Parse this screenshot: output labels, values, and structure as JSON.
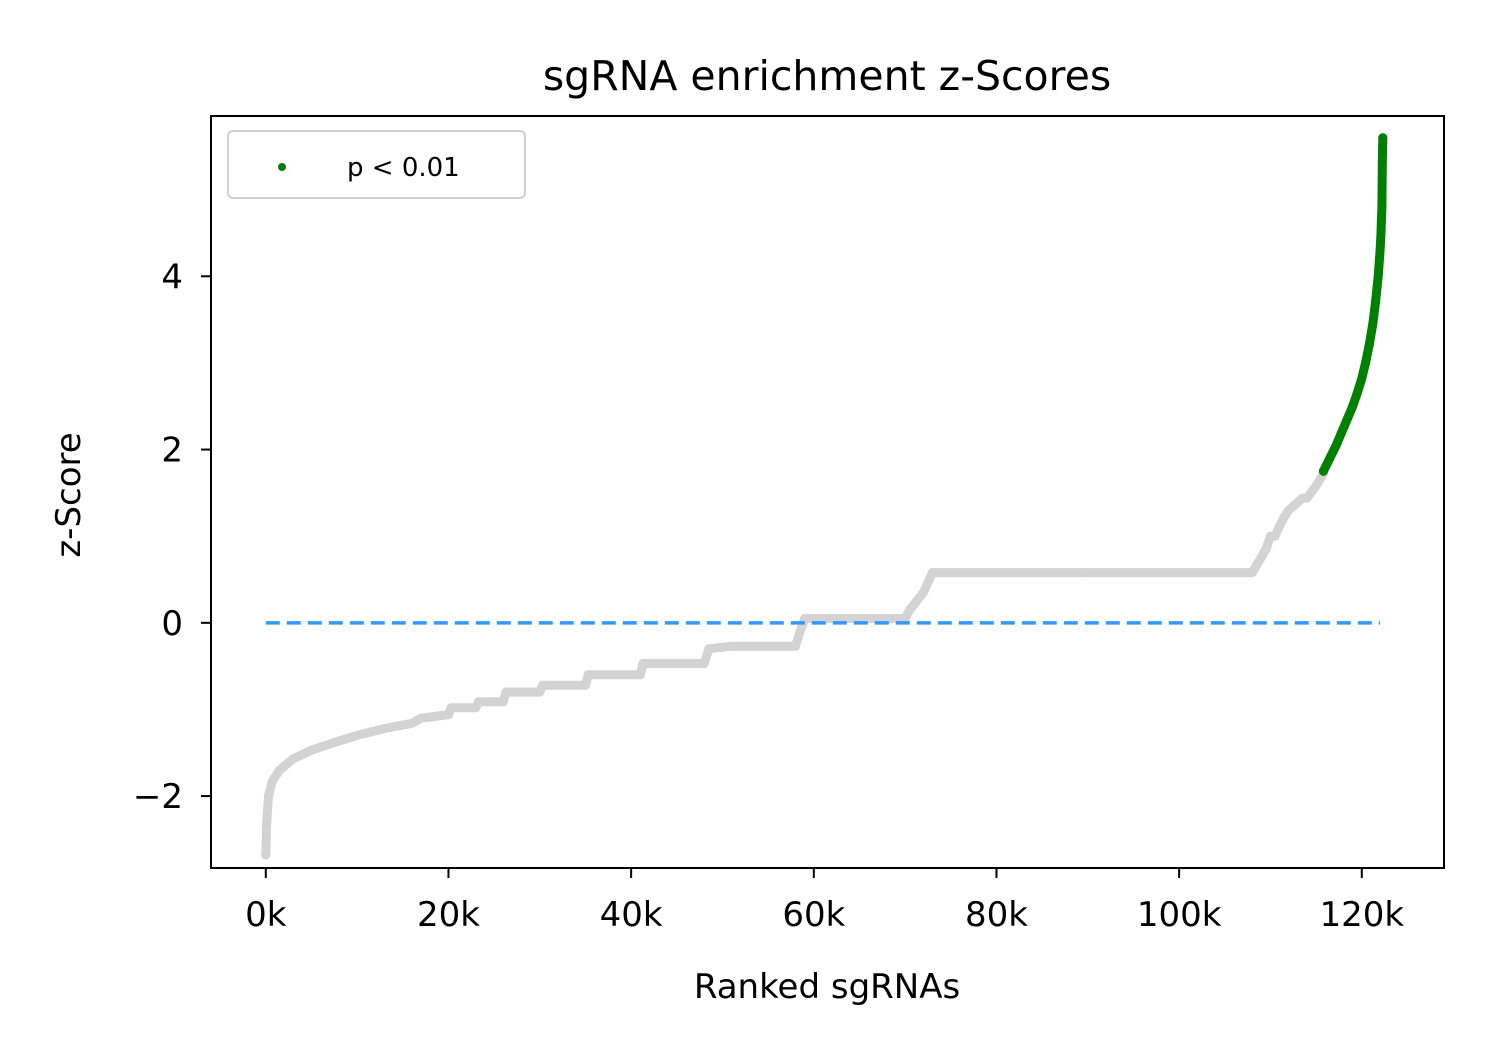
{
  "chart_data": {
    "type": "scatter",
    "title": "sgRNA enrichment z-Scores",
    "xlabel": "Ranked sgRNAs",
    "ylabel": "z-Score",
    "xlim": [
      -6000,
      129000
    ],
    "ylim": [
      -2.83,
      5.85
    ],
    "x_ticks": [
      {
        "value": 0,
        "label": "0k"
      },
      {
        "value": 20000,
        "label": "20k"
      },
      {
        "value": 40000,
        "label": "40k"
      },
      {
        "value": 60000,
        "label": "60k"
      },
      {
        "value": 80000,
        "label": "80k"
      },
      {
        "value": 100000,
        "label": "100k"
      },
      {
        "value": 120000,
        "label": "120k"
      }
    ],
    "y_ticks": [
      {
        "value": -2,
        "label": "−2"
      },
      {
        "value": 0,
        "label": "0"
      },
      {
        "value": 2,
        "label": "2"
      },
      {
        "value": 4,
        "label": "4"
      }
    ],
    "grid": false,
    "legend": {
      "position": "top-left",
      "entries": [
        {
          "label": "p < 0.01",
          "color": "#008000"
        }
      ]
    },
    "reference_line": {
      "y": 0,
      "x_from": 0,
      "x_to": 122000,
      "style": "dashed",
      "color": "#3399ff"
    },
    "series": [
      {
        "role": "all sgRNAs",
        "color": "#d3d3d3",
        "x": [
          0,
          100,
          300,
          700,
          1500,
          3000,
          5000,
          7500,
          10000,
          13000,
          16000,
          17000,
          20000,
          20300,
          23000,
          23300,
          26000,
          26300,
          30000,
          30300,
          35000,
          35300,
          41000,
          41300,
          48000,
          48500,
          51000,
          58000,
          58500,
          59000,
          70000,
          70500,
          72000,
          73000,
          90000,
          108000,
          108800,
          109500,
          110000,
          110500,
          111000,
          111500,
          112000,
          113500,
          114000,
          115000,
          115800
        ],
        "y": [
          -2.68,
          -2.3,
          -2.0,
          -1.83,
          -1.7,
          -1.57,
          -1.47,
          -1.38,
          -1.3,
          -1.22,
          -1.16,
          -1.1,
          -1.06,
          -0.98,
          -0.98,
          -0.91,
          -0.91,
          -0.8,
          -0.8,
          -0.72,
          -0.72,
          -0.6,
          -0.6,
          -0.47,
          -0.47,
          -0.3,
          -0.27,
          -0.27,
          -0.1,
          0.05,
          0.05,
          0.15,
          0.35,
          0.58,
          0.58,
          0.58,
          0.72,
          0.85,
          1.0,
          1.0,
          1.12,
          1.22,
          1.3,
          1.44,
          1.44,
          1.58,
          1.72
        ]
      },
      {
        "name": "p < 0.01",
        "color": "#008000",
        "x": [
          115800,
          116500,
          117200,
          117800,
          118400,
          119000,
          119500,
          120000,
          120400,
          120800,
          121200,
          121500,
          121800,
          122000,
          122100,
          122150,
          122200,
          122250,
          122300
        ],
        "y": [
          1.75,
          1.9,
          2.05,
          2.2,
          2.35,
          2.5,
          2.65,
          2.82,
          3.0,
          3.2,
          3.45,
          3.7,
          4.0,
          4.3,
          4.5,
          4.65,
          4.8,
          5.3,
          5.6
        ]
      }
    ]
  }
}
